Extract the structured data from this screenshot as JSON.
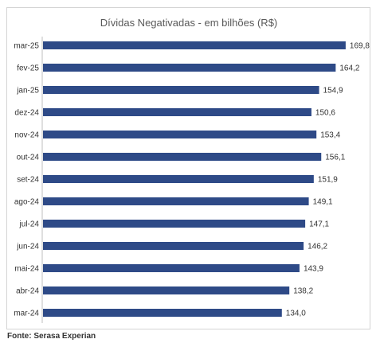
{
  "source": "Fonte: Serasa Experian",
  "colors": {
    "bar": "#2e4a87",
    "axis": "#bfbfbf",
    "frame": "#d4d4d4"
  },
  "chart_data": {
    "type": "bar",
    "orientation": "horizontal",
    "title": "Dívidas Negativadas - em bilhões (R$)",
    "categories": [
      "mar-25",
      "fev-25",
      "jan-25",
      "dez-24",
      "nov-24",
      "out-24",
      "set-24",
      "ago-24",
      "jul-24",
      "jun-24",
      "mai-24",
      "abr-24",
      "mar-24"
    ],
    "values": [
      169.8,
      164.2,
      154.9,
      150.6,
      153.4,
      156.1,
      151.9,
      149.1,
      147.1,
      146.2,
      143.9,
      138.2,
      134.0
    ],
    "value_labels": [
      "169,8",
      "164,2",
      "154,9",
      "150,6",
      "153,4",
      "156,1",
      "151,9",
      "149,1",
      "147,1",
      "146,2",
      "143,9",
      "138,2",
      "134,0"
    ],
    "xlim": [
      0,
      177
    ],
    "grid": false,
    "legend": "none"
  }
}
